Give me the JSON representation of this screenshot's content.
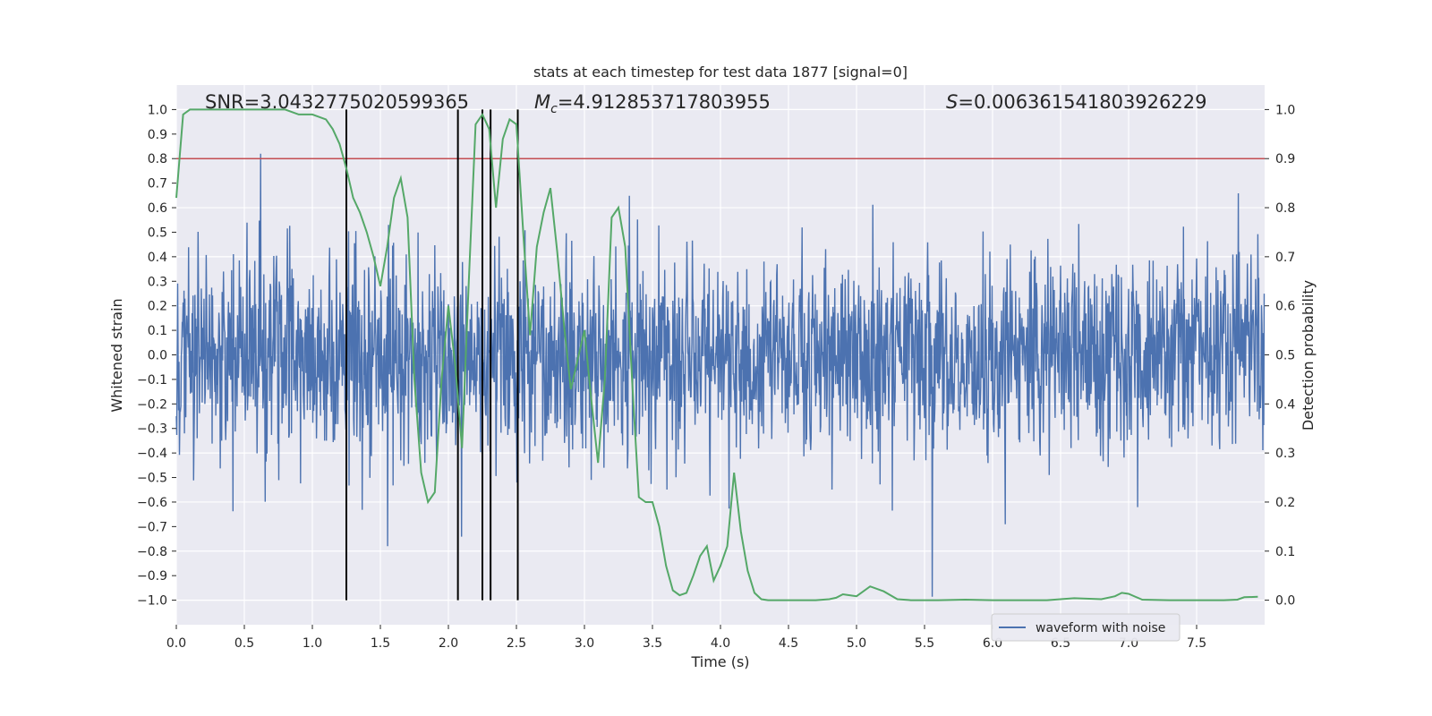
{
  "chart_data": {
    "type": "line",
    "title": "stats at each timestep for test data 1877 [signal=0]",
    "xlabel": "Time (s)",
    "ylabel": "Whitened strain",
    "y2label": "Detection probability",
    "xlim": [
      0.0,
      8.0
    ],
    "ylim": [
      -1.1,
      1.1
    ],
    "y2lim": [
      -0.05,
      1.05
    ],
    "x_ticks": [
      0.0,
      0.5,
      1.0,
      1.5,
      2.0,
      2.5,
      3.0,
      3.5,
      4.0,
      4.5,
      5.0,
      5.5,
      6.0,
      6.5,
      7.0,
      7.5
    ],
    "x_tick_labels": [
      "0.0",
      "0.5",
      "1.0",
      "1.5",
      "2.0",
      "2.5",
      "3.0",
      "3.5",
      "4.0",
      "4.5",
      "5.0",
      "5.5",
      "6.0",
      "6.5",
      "7.0",
      "7.5"
    ],
    "y_ticks": [
      -1.0,
      -0.9,
      -0.8,
      -0.7,
      -0.6,
      -0.5,
      -0.4,
      -0.3,
      -0.2,
      -0.1,
      0.0,
      0.1,
      0.2,
      0.3,
      0.4,
      0.5,
      0.6,
      0.7,
      0.8,
      0.9,
      1.0
    ],
    "y_tick_labels": [
      "−1.0",
      "−0.9",
      "−0.8",
      "−0.7",
      "−0.6",
      "−0.5",
      "−0.4",
      "−0.3",
      "−0.2",
      "−0.1",
      "0.0",
      "0.1",
      "0.2",
      "0.3",
      "0.4",
      "0.5",
      "0.6",
      "0.7",
      "0.8",
      "0.9",
      "1.0"
    ],
    "y2_ticks": [
      0.0,
      0.1,
      0.2,
      0.3,
      0.4,
      0.5,
      0.6,
      0.7,
      0.8,
      0.9,
      1.0
    ],
    "y2_tick_labels": [
      "0.0",
      "0.1",
      "0.2",
      "0.3",
      "0.4",
      "0.5",
      "0.6",
      "0.7",
      "0.8",
      "0.9",
      "1.0"
    ],
    "threshold": {
      "value": 0.9,
      "axis": "y2",
      "color": "#c44e52"
    },
    "vlines": [
      1.25,
      2.07,
      2.25,
      2.31,
      2.51
    ],
    "vline_range": [
      -1.0,
      1.0
    ],
    "waveform": {
      "name": "waveform with noise",
      "color": "#4c72b0",
      "duration": 8.0,
      "samples": 2400,
      "seed": 1877
    },
    "probability": {
      "name": "detection probability",
      "color": "#55a868",
      "x": [
        0.0,
        0.05,
        0.1,
        0.2,
        0.3,
        0.4,
        0.5,
        0.6,
        0.7,
        0.8,
        0.9,
        1.0,
        1.1,
        1.15,
        1.2,
        1.25,
        1.3,
        1.35,
        1.4,
        1.45,
        1.5,
        1.55,
        1.6,
        1.65,
        1.7,
        1.75,
        1.8,
        1.85,
        1.9,
        1.95,
        2.0,
        2.05,
        2.1,
        2.15,
        2.2,
        2.25,
        2.3,
        2.35,
        2.4,
        2.45,
        2.5,
        2.55,
        2.6,
        2.65,
        2.7,
        2.75,
        2.8,
        2.85,
        2.9,
        2.95,
        3.0,
        3.05,
        3.1,
        3.15,
        3.2,
        3.25,
        3.3,
        3.35,
        3.4,
        3.45,
        3.5,
        3.55,
        3.6,
        3.65,
        3.7,
        3.75,
        3.8,
        3.85,
        3.9,
        3.95,
        4.0,
        4.05,
        4.1,
        4.15,
        4.2,
        4.25,
        4.3,
        4.35,
        4.4,
        4.5,
        4.6,
        4.7,
        4.8,
        4.85,
        4.9,
        4.95,
        5.0,
        5.1,
        5.2,
        5.3,
        5.4,
        5.5,
        5.6,
        5.8,
        6.0,
        6.2,
        6.4,
        6.6,
        6.8,
        6.9,
        6.95,
        7.0,
        7.1,
        7.3,
        7.5,
        7.7,
        7.8,
        7.85,
        7.95
      ],
      "y": [
        0.82,
        0.99,
        1.0,
        1.0,
        1.0,
        1.0,
        1.0,
        1.0,
        1.0,
        1.0,
        0.99,
        0.99,
        0.98,
        0.96,
        0.93,
        0.88,
        0.82,
        0.79,
        0.75,
        0.7,
        0.64,
        0.72,
        0.82,
        0.86,
        0.78,
        0.45,
        0.26,
        0.2,
        0.22,
        0.45,
        0.6,
        0.48,
        0.31,
        0.65,
        0.97,
        0.99,
        0.96,
        0.8,
        0.94,
        0.98,
        0.97,
        0.75,
        0.54,
        0.72,
        0.79,
        0.84,
        0.71,
        0.56,
        0.43,
        0.49,
        0.55,
        0.41,
        0.28,
        0.45,
        0.78,
        0.8,
        0.72,
        0.45,
        0.21,
        0.2,
        0.2,
        0.15,
        0.07,
        0.02,
        0.01,
        0.015,
        0.05,
        0.09,
        0.11,
        0.04,
        0.07,
        0.11,
        0.26,
        0.14,
        0.06,
        0.015,
        0.002,
        0.0,
        0.0,
        0.0,
        0.0,
        0.0,
        0.002,
        0.005,
        0.012,
        0.01,
        0.008,
        0.028,
        0.018,
        0.002,
        0.0,
        0.0,
        0.0,
        0.001,
        0.0,
        0.0,
        0.0,
        0.004,
        0.002,
        0.008,
        0.015,
        0.013,
        0.001,
        0.0,
        0.0,
        0.0,
        0.001,
        0.006,
        0.007
      ]
    },
    "annotations": {
      "snr": "SNR=3.0432775020599365",
      "mc_symbol": "M",
      "mc_sub": "c",
      "mc_value": "=4.912853717803955",
      "s_symbol": "S",
      "s_value": "=0.006361541803926229⁠"
    },
    "legend": {
      "label": "waveform with noise",
      "position": "lower-right"
    },
    "background": "#eaeaf2",
    "grid": true
  }
}
